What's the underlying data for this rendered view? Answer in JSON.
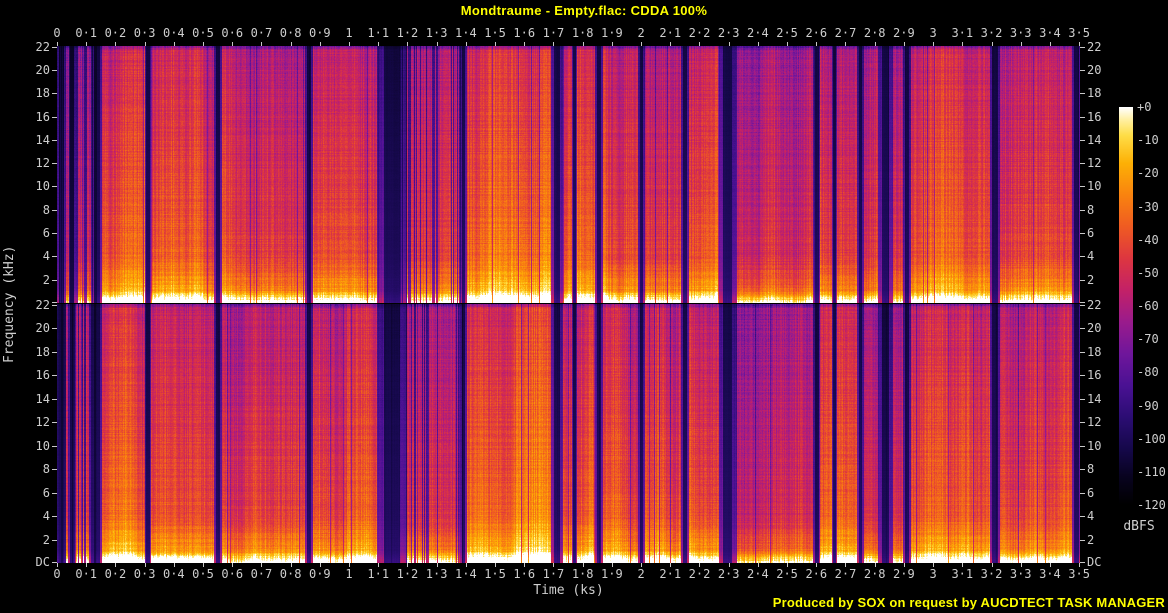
{
  "header": {
    "title": "Mondtraume - Empty.flac: CDDA 100%"
  },
  "footer": {
    "credit": "Produced by SOX on request by AUCDTECT TASK MANAGER"
  },
  "colors": {
    "background": "#000000",
    "accent_text": "#ffff00",
    "axis_text": "#cfcfcf",
    "tick": "#c8c8c8"
  },
  "chart_data": {
    "type": "heatmap",
    "subtype": "spectrogram",
    "title": "Mondtraume - Empty.flac: CDDA 100%",
    "xlabel": "Time (ks)",
    "ylabel": "Frequency (kHz)",
    "colorbar_label": "dBFS",
    "channels": [
      "left",
      "right"
    ],
    "time_range_ks": [
      0,
      3.503
    ],
    "freq_range_khz": [
      0,
      22.05
    ],
    "db_range": [
      0,
      -120
    ],
    "x_ticks": [
      "0",
      "0·1",
      "0·2",
      "0·3",
      "0·4",
      "0·5",
      "0·6",
      "0·7",
      "0·8",
      "0·9",
      "1",
      "1·1",
      "1·2",
      "1·3",
      "1·4",
      "1·5",
      "1·6",
      "1·7",
      "1·8",
      "1·9",
      "2",
      "2·1",
      "2·2",
      "2·3",
      "2·4",
      "2·5",
      "2·6",
      "2·7",
      "2·8",
      "2·9",
      "3",
      "3·1",
      "3·2",
      "3·3",
      "3·4",
      "3·5"
    ],
    "y_ticks": [
      "22",
      "20",
      "18",
      "16",
      "14",
      "12",
      "10",
      "8",
      "6",
      "4",
      "2"
    ],
    "y_bottom_label": "DC",
    "colorbar_ticks": [
      "+0",
      "-10",
      "-20",
      "-30",
      "-40",
      "-50",
      "-60",
      "-70",
      "-80",
      "-90",
      "-100",
      "-110",
      "-120"
    ],
    "gaps_ks": [
      {
        "t": 0.013,
        "w": 0.018
      },
      {
        "t": 0.05,
        "w": 0.012
      },
      {
        "t": 0.135,
        "w": 0.02
      },
      {
        "t": 0.31,
        "w": 0.012
      },
      {
        "t": 0.55,
        "w": 0.014
      },
      {
        "t": 0.86,
        "w": 0.014
      },
      {
        "t": 1.145,
        "w": 0.055
      },
      {
        "t": 1.39,
        "w": 0.012
      },
      {
        "t": 1.71,
        "w": 0.022
      },
      {
        "t": 1.77,
        "w": 0.008
      },
      {
        "t": 1.855,
        "w": 0.014
      },
      {
        "t": 2.0,
        "w": 0.012
      },
      {
        "t": 2.15,
        "w": 0.014
      },
      {
        "t": 2.295,
        "w": 0.032
      },
      {
        "t": 2.6,
        "w": 0.012
      },
      {
        "t": 2.66,
        "w": 0.01
      },
      {
        "t": 2.75,
        "w": 0.012
      },
      {
        "t": 2.835,
        "w": 0.026
      },
      {
        "t": 2.91,
        "w": 0.014
      },
      {
        "t": 3.21,
        "w": 0.018
      },
      {
        "t": 3.49,
        "w": 0.016
      }
    ],
    "segments": [
      {
        "start": 0.0,
        "end": 0.135,
        "level": 0.54
      },
      {
        "start": 0.135,
        "end": 0.31,
        "level": 0.66
      },
      {
        "start": 0.31,
        "end": 0.55,
        "level": 0.63
      },
      {
        "start": 0.55,
        "end": 0.86,
        "level": 0.6
      },
      {
        "start": 0.86,
        "end": 1.17,
        "level": 0.62
      },
      {
        "start": 1.17,
        "end": 1.39,
        "level": 0.58
      },
      {
        "start": 1.39,
        "end": 1.71,
        "level": 0.7
      },
      {
        "start": 1.71,
        "end": 1.855,
        "level": 0.64
      },
      {
        "start": 1.855,
        "end": 2.15,
        "level": 0.62
      },
      {
        "start": 2.15,
        "end": 2.31,
        "level": 0.63
      },
      {
        "start": 2.31,
        "end": 2.6,
        "level": 0.53
      },
      {
        "start": 2.6,
        "end": 2.75,
        "level": 0.62
      },
      {
        "start": 2.75,
        "end": 2.91,
        "level": 0.59
      },
      {
        "start": 2.91,
        "end": 3.21,
        "level": 0.65
      },
      {
        "start": 3.21,
        "end": 3.503,
        "level": 0.62
      }
    ],
    "palette": [
      [
        0.0,
        "#000000"
      ],
      [
        0.07,
        "#08031f"
      ],
      [
        0.14,
        "#15084a"
      ],
      [
        0.22,
        "#2b0d73"
      ],
      [
        0.3,
        "#4a1193"
      ],
      [
        0.38,
        "#6f169b"
      ],
      [
        0.46,
        "#9a1b8c"
      ],
      [
        0.54,
        "#c32167"
      ],
      [
        0.62,
        "#dd3640"
      ],
      [
        0.7,
        "#ef5b22"
      ],
      [
        0.78,
        "#f9830f"
      ],
      [
        0.86,
        "#fdb005"
      ],
      [
        0.93,
        "#fedd47"
      ],
      [
        0.97,
        "#fff0a4"
      ],
      [
        1.0,
        "#ffffff"
      ]
    ],
    "legend_position": "right",
    "grid": false
  }
}
